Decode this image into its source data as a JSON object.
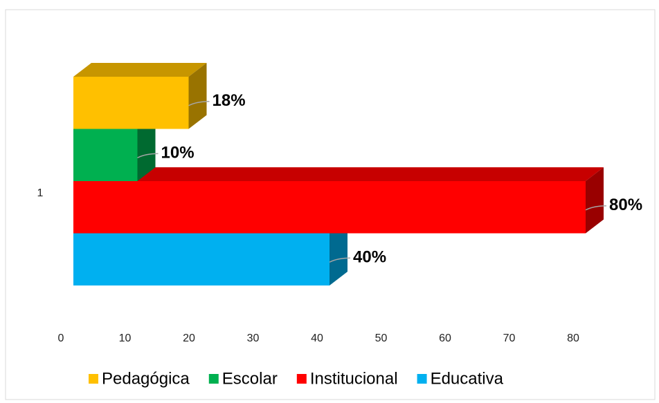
{
  "chart_data": {
    "type": "bar3d_horizontal",
    "categories": [
      "1"
    ],
    "series": [
      {
        "name": "Pedagógica",
        "color": "#FFC000",
        "values": [
          18
        ],
        "value_labels": [
          "18%"
        ]
      },
      {
        "name": "Escolar",
        "color": "#00B050",
        "values": [
          10
        ],
        "value_labels": [
          "10%"
        ]
      },
      {
        "name": "Institucional",
        "color": "#FF0000",
        "values": [
          80
        ],
        "value_labels": [
          "80%"
        ]
      },
      {
        "name": "Educativa",
        "color": "#00B0F0",
        "values": [
          40
        ],
        "value_labels": [
          "40%"
        ]
      }
    ],
    "xlim": [
      0,
      80
    ],
    "xticks": [
      0,
      10,
      20,
      30,
      40,
      50,
      60,
      70,
      80
    ],
    "legend": "bottom"
  }
}
